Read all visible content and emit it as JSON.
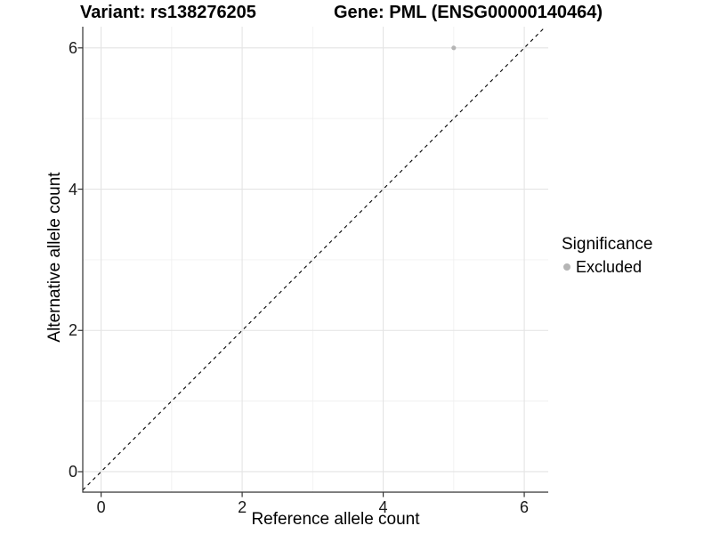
{
  "figure": {
    "title_left": "Variant: rs138276205",
    "title_right": "Gene: PML (ENSG00000140464)"
  },
  "axes": {
    "x": {
      "label": "Reference allele count",
      "ticks": [
        "0",
        "2",
        "4",
        "6"
      ]
    },
    "y": {
      "label": "Alternative allele count",
      "ticks": [
        "0",
        "2",
        "4",
        "6"
      ]
    }
  },
  "legend": {
    "title": "Significance",
    "items": [
      {
        "label": "Excluded",
        "color": "#b5b5b5"
      }
    ]
  },
  "colors": {
    "background": "#ffffff",
    "grid_major": "#e4e4e4",
    "grid_minor": "#f0f0f0",
    "axis_line": "#333333",
    "tick_mark": "#333333",
    "identity_line": "#000000",
    "point": "#b5b5b5"
  },
  "chart_data": {
    "type": "scatter",
    "title_left": "Variant: rs138276205",
    "title_right": "Gene: PML (ENSG00000140464)",
    "xlabel": "Reference allele count",
    "ylabel": "Alternative allele count",
    "xlim": [
      -0.26,
      6.34
    ],
    "ylim": [
      -0.29,
      6.3
    ],
    "x_major_ticks": [
      0,
      2,
      4,
      6
    ],
    "y_major_ticks": [
      0,
      2,
      4,
      6
    ],
    "x_minor_gridlines": [
      1,
      3,
      5
    ],
    "y_minor_gridlines": [
      1,
      3,
      5
    ],
    "grid": true,
    "legend_position": "right",
    "series": [
      {
        "name": "Excluded",
        "color": "#b5b5b5",
        "points": [
          {
            "x": 5,
            "y": 6
          }
        ]
      }
    ],
    "reference_line": {
      "type": "identity",
      "slope": 1,
      "intercept": 0,
      "style": "dashed",
      "color": "#000000"
    }
  }
}
